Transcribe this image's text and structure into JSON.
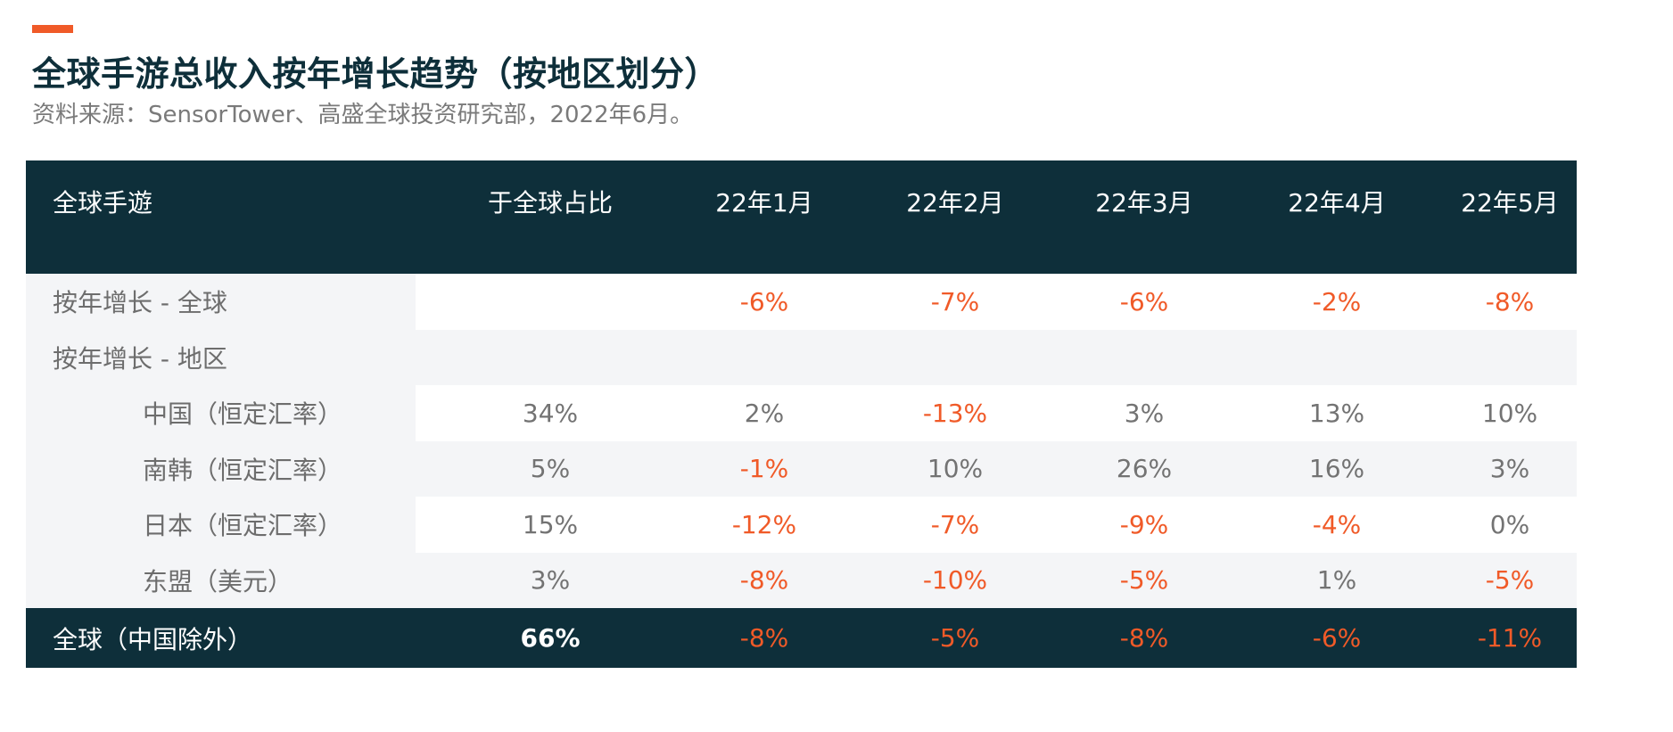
{
  "header": {
    "title": "全球手游总收入按年增长趋势（按地区划分）",
    "subtitle": "资料来源：SensorTower、高盛全球投资研究部，2022年6月。"
  },
  "colors": {
    "accent": "#f05a28",
    "navy": "#0e2f3a",
    "negative": "#f05a28",
    "neutral_text": "#737373",
    "row_alt": "#f4f5f7"
  },
  "chart_data": {
    "type": "table",
    "columns": [
      "全球手遊",
      "于全球占比",
      "22年1月",
      "22年2月",
      "22年3月",
      "22年4月",
      "22年5月"
    ],
    "rows": [
      {
        "label": "按年增长 - 全球",
        "indent": false,
        "share": "",
        "values": [
          "-6%",
          "-7%",
          "-6%",
          "-2%",
          "-8%"
        ]
      },
      {
        "label": "按年增长 - 地区",
        "indent": false,
        "share": "",
        "values": [
          "",
          "",
          "",
          "",
          ""
        ]
      },
      {
        "label": "中国（恒定汇率）",
        "indent": true,
        "share": "34%",
        "values": [
          "2%",
          "-13%",
          "3%",
          "13%",
          "10%"
        ]
      },
      {
        "label": "南韩（恒定汇率）",
        "indent": true,
        "share": "5%",
        "values": [
          "-1%",
          "10%",
          "26%",
          "16%",
          "3%"
        ]
      },
      {
        "label": "日本（恒定汇率）",
        "indent": true,
        "share": "15%",
        "values": [
          "-12%",
          "-7%",
          "-9%",
          "-4%",
          "0%"
        ]
      },
      {
        "label": "东盟（美元）",
        "indent": true,
        "share": "3%",
        "values": [
          "-8%",
          "-10%",
          "-5%",
          "1%",
          "-5%"
        ]
      }
    ],
    "footer": {
      "label": "全球（中国除外）",
      "share": "66%",
      "values": [
        "-8%",
        "-5%",
        "-8%",
        "-6%",
        "-11%"
      ]
    }
  }
}
